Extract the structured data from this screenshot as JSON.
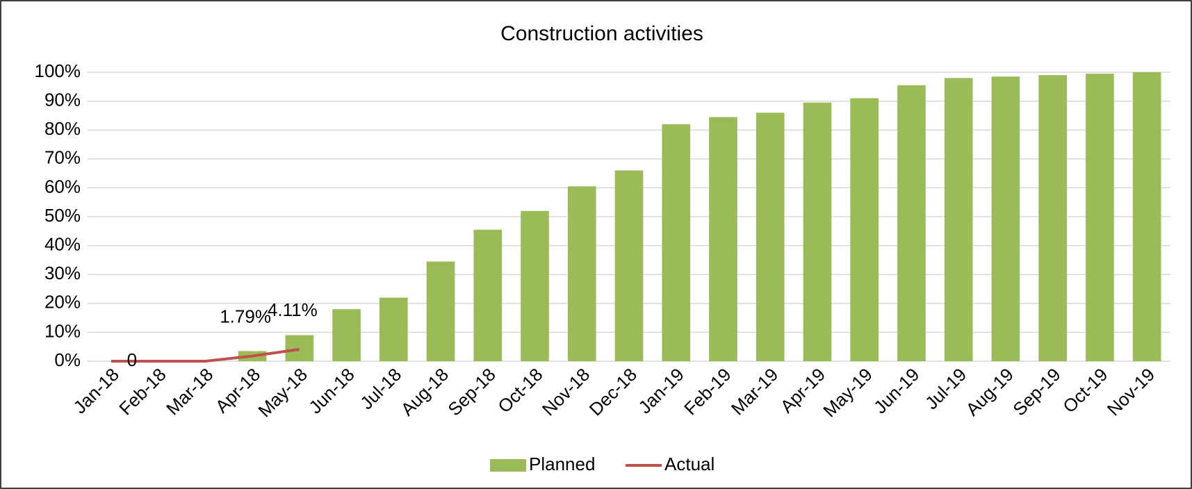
{
  "chart_data": {
    "type": "bar",
    "title": "Construction activities",
    "categories": [
      "Jan-18",
      "Feb-18",
      "Mar-18",
      "Apr-18",
      "May-18",
      "Jun-18",
      "Jul-18",
      "Aug-18",
      "Sep-18",
      "Oct-18",
      "Nov-18",
      "Dec-18",
      "Jan-19",
      "Feb-19",
      "Mar-19",
      "Apr-19",
      "May-19",
      "Jun-19",
      "Jul-19",
      "Aug-19",
      "Sep-19",
      "Oct-19",
      "Nov-19"
    ],
    "series": [
      {
        "name": "Planned",
        "type": "bar",
        "color": "#9bbb59",
        "values": [
          0,
          0,
          0,
          3.5,
          9,
          18,
          22,
          34.5,
          45.5,
          52,
          60.5,
          66,
          82,
          84.5,
          86,
          89.5,
          91,
          95.5,
          98,
          98.5,
          99,
          99.5,
          100
        ]
      },
      {
        "name": "Actual",
        "type": "line",
        "color": "#c0504d",
        "values": [
          0,
          0,
          0,
          1.79,
          4.11,
          null,
          null,
          null,
          null,
          null,
          null,
          null,
          null,
          null,
          null,
          null,
          null,
          null,
          null,
          null,
          null,
          null,
          null
        ],
        "value_labels": [
          "0",
          null,
          null,
          "1.79%",
          "4.11%",
          null,
          null,
          null,
          null,
          null,
          null,
          null,
          null,
          null,
          null,
          null,
          null,
          null,
          null,
          null,
          null,
          null,
          null
        ]
      }
    ],
    "ylim": [
      0,
      100
    ],
    "yticks": [
      {
        "value": 0,
        "label": "0%"
      },
      {
        "value": 10,
        "label": "10%"
      },
      {
        "value": 20,
        "label": "20%"
      },
      {
        "value": 30,
        "label": "30%"
      },
      {
        "value": 40,
        "label": "40%"
      },
      {
        "value": 50,
        "label": "50%"
      },
      {
        "value": 60,
        "label": "60%"
      },
      {
        "value": 70,
        "label": "70%"
      },
      {
        "value": 80,
        "label": "80%"
      },
      {
        "value": 90,
        "label": "90%"
      },
      {
        "value": 100,
        "label": "100%"
      }
    ],
    "grid": true,
    "legend": "bottom"
  }
}
